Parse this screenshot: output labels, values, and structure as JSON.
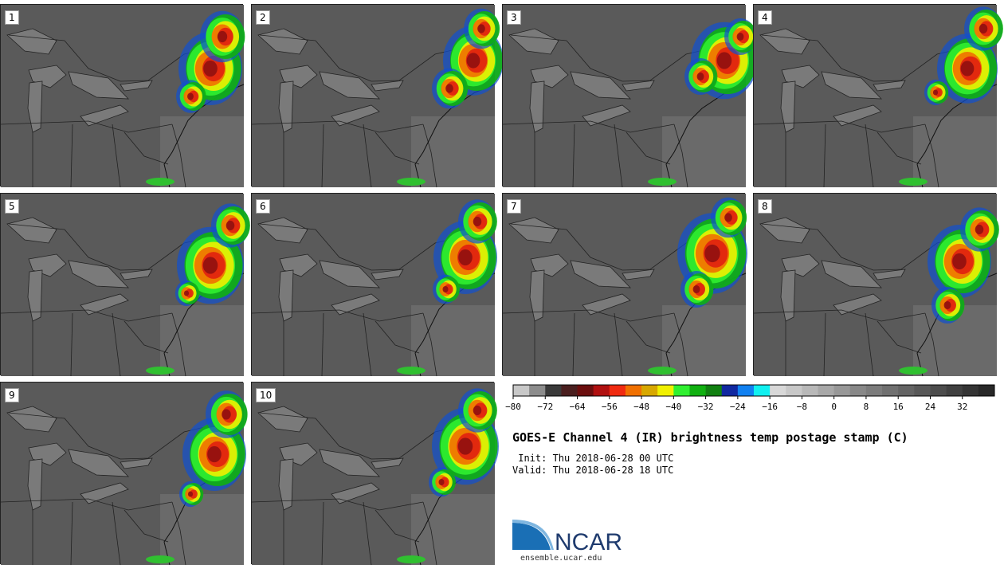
{
  "panels": [
    "1",
    "2",
    "3",
    "4",
    "5",
    "6",
    "7",
    "8",
    "9",
    "10"
  ],
  "colorbar": {
    "colors": [
      "#c8c8c8",
      "#8c8c8c",
      "#3a3a3a",
      "#4a1f1f",
      "#6b0e0e",
      "#b01010",
      "#f02a10",
      "#f07000",
      "#d8a800",
      "#f0f000",
      "#30f030",
      "#10b010",
      "#108010",
      "#1028a0",
      "#1080f0",
      "#10f0f0",
      "#d8d8d8",
      "#c8c8c8",
      "#b8b8b8",
      "#a8a8a8",
      "#989898",
      "#888888",
      "#7c7c7c",
      "#707070",
      "#646464",
      "#585858",
      "#4c4c4c",
      "#404040",
      "#343434",
      "#282828"
    ],
    "tick_labels": [
      "-80",
      "-72",
      "-64",
      "-56",
      "-48",
      "-40",
      "-32",
      "-24",
      "-16",
      "-8",
      "0",
      "8",
      "16",
      "24",
      "32"
    ]
  },
  "title": "GOES-E Channel 4 (IR) brightness temp postage stamp (C)",
  "init": " Init: Thu 2018-06-28 00 UTC",
  "valid": "Valid: Thu 2018-06-28 18 UTC",
  "logo_text": "NCAR",
  "site": "ensemble.ucar.edu"
}
